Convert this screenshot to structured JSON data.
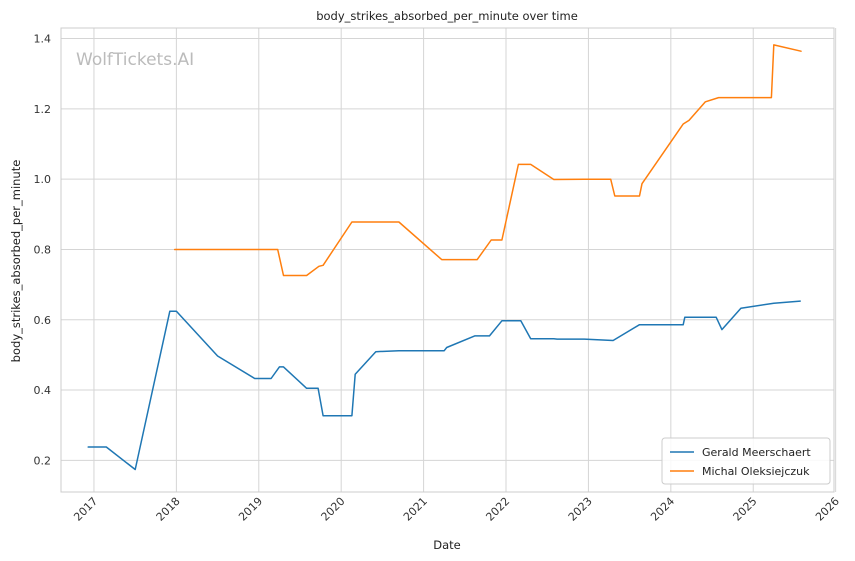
{
  "chart_data": {
    "type": "line",
    "title": "body_strikes_absorbed_per_minute over time",
    "xlabel": "Date",
    "ylabel": "body_strikes_absorbed_per_minute",
    "watermark": "WolfTickets.AI",
    "xlim": [
      2016.6,
      2025.98
    ],
    "ylim": [
      0.11,
      1.43
    ],
    "x_ticks": [
      "2017",
      "2018",
      "2019",
      "2020",
      "2021",
      "2022",
      "2023",
      "2024",
      "2025",
      "2026"
    ],
    "y_ticks": [
      "0.2",
      "0.4",
      "0.6",
      "0.8",
      "1.0",
      "1.2",
      "1.4"
    ],
    "grid": true,
    "legend_position": "bottom-right",
    "series": [
      {
        "name": "Gerald Meerschaert",
        "color": "#1f77b4",
        "points": [
          [
            2016.93,
            0.238
          ],
          [
            2017.15,
            0.238
          ],
          [
            2017.5,
            0.174
          ],
          [
            2017.92,
            0.624
          ],
          [
            2018.0,
            0.624
          ],
          [
            2018.5,
            0.497
          ],
          [
            2018.95,
            0.433
          ],
          [
            2019.15,
            0.433
          ],
          [
            2019.25,
            0.466
          ],
          [
            2019.3,
            0.466
          ],
          [
            2019.58,
            0.405
          ],
          [
            2019.72,
            0.405
          ],
          [
            2019.78,
            0.327
          ],
          [
            2020.13,
            0.327
          ],
          [
            2020.17,
            0.445
          ],
          [
            2020.42,
            0.509
          ],
          [
            2020.7,
            0.512
          ],
          [
            2021.25,
            0.512
          ],
          [
            2021.28,
            0.521
          ],
          [
            2021.62,
            0.554
          ],
          [
            2021.8,
            0.554
          ],
          [
            2021.95,
            0.597
          ],
          [
            2022.18,
            0.597
          ],
          [
            2022.3,
            0.546
          ],
          [
            2022.58,
            0.546
          ],
          [
            2022.62,
            0.545
          ],
          [
            2022.95,
            0.545
          ],
          [
            2023.3,
            0.541
          ],
          [
            2023.62,
            0.586
          ],
          [
            2024.15,
            0.586
          ],
          [
            2024.17,
            0.607
          ],
          [
            2024.55,
            0.607
          ],
          [
            2024.62,
            0.572
          ],
          [
            2024.85,
            0.633
          ],
          [
            2025.25,
            0.647
          ],
          [
            2025.57,
            0.653
          ]
        ]
      },
      {
        "name": "Michal Oleksiejczuk",
        "color": "#ff7f0e",
        "points": [
          [
            2017.98,
            0.8
          ],
          [
            2019.23,
            0.8
          ],
          [
            2019.3,
            0.726
          ],
          [
            2019.58,
            0.726
          ],
          [
            2019.73,
            0.752
          ],
          [
            2019.78,
            0.755
          ],
          [
            2020.13,
            0.878
          ],
          [
            2020.7,
            0.878
          ],
          [
            2021.22,
            0.771
          ],
          [
            2021.65,
            0.771
          ],
          [
            2021.82,
            0.827
          ],
          [
            2021.95,
            0.827
          ],
          [
            2022.15,
            1.042
          ],
          [
            2022.3,
            1.042
          ],
          [
            2022.58,
            0.999
          ],
          [
            2022.95,
            1.0
          ],
          [
            2023.27,
            1.0
          ],
          [
            2023.32,
            0.952
          ],
          [
            2023.62,
            0.952
          ],
          [
            2023.65,
            0.987
          ],
          [
            2024.15,
            1.157
          ],
          [
            2024.22,
            1.167
          ],
          [
            2024.42,
            1.22
          ],
          [
            2024.58,
            1.232
          ],
          [
            2025.22,
            1.232
          ],
          [
            2025.25,
            1.382
          ],
          [
            2025.58,
            1.364
          ]
        ]
      }
    ]
  }
}
